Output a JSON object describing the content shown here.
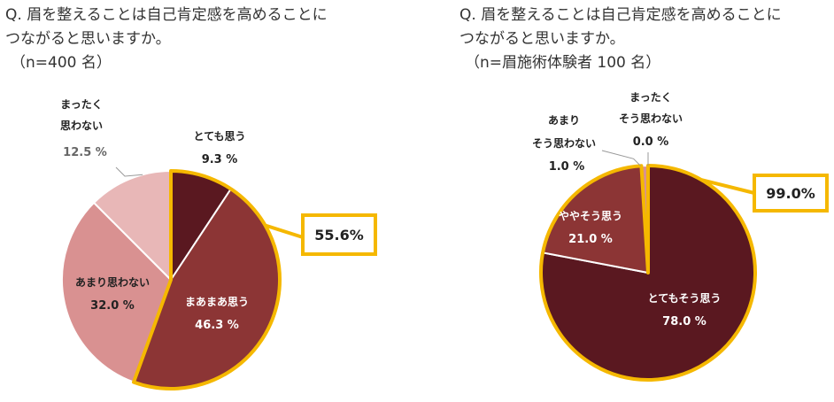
{
  "chart_data": [
    {
      "type": "pie",
      "title_lines": [
        "Q. 眉を整えることは自己肯定感を高めることに",
        "つながると思いますか。"
      ],
      "sample": "（n=400 名）",
      "slices": [
        {
          "label": "とても思う",
          "value": 9.3,
          "value_text": "9.3 %",
          "color": "#5a1820"
        },
        {
          "label": "まあまあ思う",
          "value": 46.3,
          "value_text": "46.3 %",
          "color": "#8c3535"
        },
        {
          "label": "あまり思わない",
          "value": 32.0,
          "value_text": "32.0 %",
          "color": "#d99191"
        },
        {
          "label": "まったく 思わない",
          "value": 12.5,
          "value_text": "12.5 %",
          "color": "#e8b7b7"
        }
      ],
      "callout": "55.6%"
    },
    {
      "type": "pie",
      "title_lines": [
        "Q. 眉を整えることは自己肯定感を高めることに",
        "つながると思いますか。"
      ],
      "sample": "（n=眉施術体験者 100 名）",
      "slices": [
        {
          "label": "とてもそう思う",
          "value": 78.0,
          "value_text": "78.0 %",
          "color": "#5a1820"
        },
        {
          "label": "ややそう思う",
          "value": 21.0,
          "value_text": "21.0 %",
          "color": "#8c3535"
        },
        {
          "label": "あまり そう思わない",
          "value": 1.0,
          "value_text": "1.0 %",
          "color": "#d99191"
        },
        {
          "label": "まったく そう思わない",
          "value": 0.0,
          "value_text": "0.0 %",
          "color": "#e8b7b7"
        }
      ],
      "callout": "99.0%"
    }
  ],
  "colors": {
    "highlight": "#f5b800",
    "outline": "#ffffff",
    "leader": "#999999"
  }
}
